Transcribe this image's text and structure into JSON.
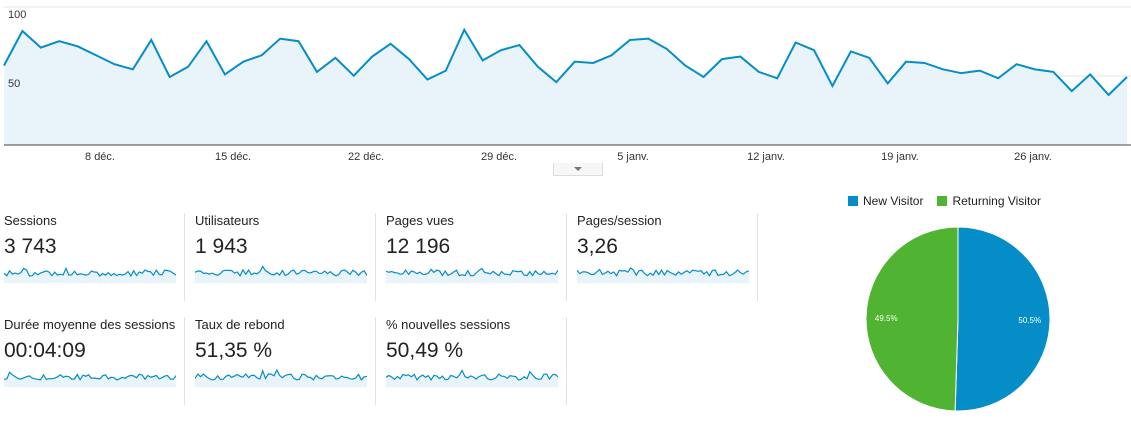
{
  "main_chart": {
    "y_ticks": [
      "100",
      "50"
    ],
    "x_ticks": [
      "8 déc.",
      "15 déc.",
      "22 déc.",
      "29 déc.",
      "5 janv.",
      "12 janv.",
      "19 janv.",
      "26 janv."
    ],
    "ylim": [
      0,
      108
    ],
    "color": "#058dc7",
    "fill": "#e8f4fa",
    "values": [
      63,
      90,
      77,
      82,
      78,
      71,
      64,
      60,
      83,
      54,
      62,
      82,
      56,
      66,
      71,
      84,
      82,
      58,
      69,
      55,
      70,
      80,
      68,
      52,
      59,
      91,
      67,
      75,
      79,
      62,
      50,
      66,
      65,
      71,
      83,
      84,
      76,
      63,
      54,
      68,
      70,
      58,
      53,
      81,
      75,
      47,
      74,
      69,
      49,
      66,
      65,
      60,
      57,
      59,
      53,
      64,
      60,
      58,
      43,
      56,
      40,
      54
    ]
  },
  "metrics": [
    {
      "label": "Sessions",
      "value": "3 743"
    },
    {
      "label": "Utilisateurs",
      "value": "1 943"
    },
    {
      "label": "Pages vues",
      "value": "12 196"
    },
    {
      "label": "Pages/session",
      "value": "3,26"
    },
    {
      "label": "Durée moyenne des sessions",
      "value": "00:04:09"
    },
    {
      "label": "Taux de rebond",
      "value": "51,35 %"
    },
    {
      "label": "% nouvelles sessions",
      "value": "50,49 %"
    }
  ],
  "pie": {
    "legend": [
      {
        "label": "New Visitor",
        "color": "#058dc7"
      },
      {
        "label": "Returning Visitor",
        "color": "#50b432"
      }
    ],
    "slices": [
      {
        "name": "New Visitor",
        "value": 50.5,
        "label": "50.5%",
        "color": "#058dc7"
      },
      {
        "name": "Returning Visitor",
        "value": 49.5,
        "label": "49.5%",
        "color": "#50b432"
      }
    ]
  }
}
